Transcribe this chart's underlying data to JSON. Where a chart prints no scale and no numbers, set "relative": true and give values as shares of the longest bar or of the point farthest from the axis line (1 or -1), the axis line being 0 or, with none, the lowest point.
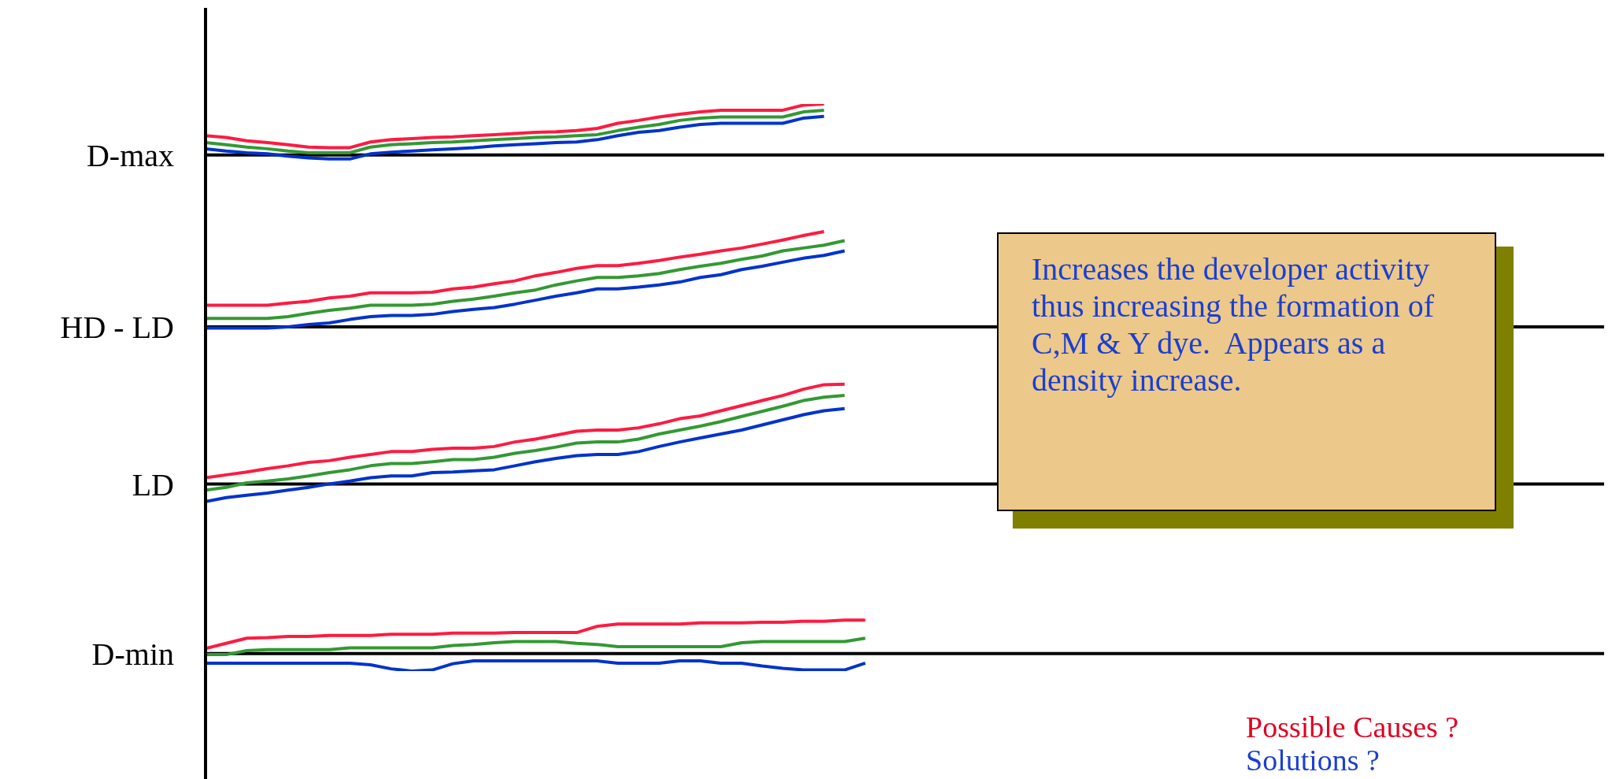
{
  "chart_data": {
    "type": "line",
    "relative": true,
    "categories": [
      null,
      null,
      null,
      null,
      null,
      null,
      null,
      null,
      null,
      null,
      null,
      null,
      null,
      null,
      null,
      null,
      null,
      null,
      null,
      null,
      null,
      null,
      null,
      null,
      null,
      null,
      null,
      null,
      null,
      null,
      null,
      null,
      null
    ],
    "series": [
      {
        "color": "#ff1a40",
        "values": [
          0.944,
          0.941,
          0.935,
          0.932,
          0.928,
          0.924,
          0.923,
          0.923,
          0.933,
          0.937,
          0.939,
          0.941,
          0.942,
          0.944,
          0.946,
          0.948,
          0.95,
          0.951,
          0.953,
          0.957,
          0.966,
          0.971,
          0.977,
          0.982,
          0.986,
          0.989,
          0.989,
          0.989,
          0.989,
          0.998,
          1,
          null,
          null
        ]
      },
      {
        "color": "#339933",
        "values": [
          0.932,
          0.928,
          0.924,
          0.921,
          0.917,
          0.914,
          0.914,
          0.914,
          0.924,
          0.928,
          0.93,
          0.932,
          0.933,
          0.935,
          0.937,
          0.939,
          0.941,
          0.942,
          0.944,
          0.946,
          0.953,
          0.959,
          0.964,
          0.971,
          0.975,
          0.977,
          0.977,
          0.977,
          0.977,
          0.986,
          0.989,
          null,
          null
        ]
      },
      {
        "color": "#0033cc",
        "values": [
          0.921,
          0.917,
          0.914,
          0.912,
          0.908,
          0.905,
          0.903,
          0.903,
          0.912,
          0.915,
          0.917,
          0.919,
          0.921,
          0.923,
          0.926,
          0.928,
          0.93,
          0.932,
          0.933,
          0.937,
          0.944,
          0.95,
          0.953,
          0.959,
          0.964,
          0.966,
          0.966,
          0.966,
          0.966,
          0.975,
          0.978,
          null,
          null
        ]
      },
      {
        "color": "#ff1a40",
        "values": [
          0.645,
          0.645,
          0.645,
          0.645,
          0.649,
          0.652,
          0.658,
          0.661,
          0.667,
          0.667,
          0.667,
          0.668,
          0.674,
          0.677,
          0.683,
          0.688,
          0.697,
          0.703,
          0.71,
          0.715,
          0.715,
          0.719,
          0.724,
          0.73,
          0.735,
          0.741,
          0.746,
          0.753,
          0.76,
          0.768,
          0.775,
          null,
          null
        ]
      },
      {
        "color": "#339933",
        "values": [
          0.622,
          0.622,
          0.622,
          0.622,
          0.625,
          0.631,
          0.636,
          0.64,
          0.645,
          0.645,
          0.645,
          0.647,
          0.652,
          0.656,
          0.661,
          0.667,
          0.672,
          0.681,
          0.688,
          0.694,
          0.694,
          0.697,
          0.701,
          0.708,
          0.714,
          0.719,
          0.726,
          0.732,
          0.741,
          0.746,
          0.751,
          0.759,
          null
        ]
      },
      {
        "color": "#0033cc",
        "values": [
          0.605,
          0.605,
          0.605,
          0.605,
          0.607,
          0.611,
          0.614,
          0.62,
          0.625,
          0.627,
          0.627,
          0.629,
          0.634,
          0.638,
          0.641,
          0.647,
          0.654,
          0.661,
          0.667,
          0.674,
          0.674,
          0.677,
          0.681,
          0.686,
          0.694,
          0.699,
          0.708,
          0.714,
          0.721,
          0.728,
          0.733,
          0.741,
          null
        ]
      },
      {
        "color": "#ff1a40",
        "values": [
          0.341,
          0.346,
          0.351,
          0.357,
          0.362,
          0.368,
          0.371,
          0.377,
          0.382,
          0.387,
          0.387,
          0.391,
          0.393,
          0.393,
          0.396,
          0.404,
          0.409,
          0.416,
          0.423,
          0.425,
          0.425,
          0.429,
          0.436,
          0.445,
          0.45,
          0.459,
          0.468,
          0.477,
          0.486,
          0.497,
          0.505,
          0.506,
          null
        ]
      },
      {
        "color": "#339933",
        "values": [
          0.319,
          0.324,
          0.332,
          0.335,
          0.339,
          0.344,
          0.35,
          0.355,
          0.362,
          0.366,
          0.366,
          0.369,
          0.373,
          0.373,
          0.377,
          0.384,
          0.389,
          0.395,
          0.402,
          0.404,
          0.404,
          0.409,
          0.418,
          0.425,
          0.432,
          0.44,
          0.449,
          0.458,
          0.467,
          0.477,
          0.483,
          0.486,
          null
        ]
      },
      {
        "color": "#0033cc",
        "values": [
          0.299,
          0.306,
          0.31,
          0.314,
          0.319,
          0.324,
          0.33,
          0.335,
          0.341,
          0.344,
          0.344,
          0.35,
          0.351,
          0.353,
          0.355,
          0.362,
          0.369,
          0.375,
          0.38,
          0.382,
          0.382,
          0.387,
          0.396,
          0.404,
          0.411,
          0.418,
          0.425,
          0.434,
          0.443,
          0.452,
          0.459,
          0.463,
          null
        ]
      },
      {
        "color": "#ff1a40",
        "values": [
          0.04,
          0.049,
          0.058,
          0.059,
          0.061,
          0.061,
          0.063,
          0.063,
          0.063,
          0.065,
          0.065,
          0.065,
          0.067,
          0.067,
          0.067,
          0.068,
          0.068,
          0.068,
          0.068,
          0.079,
          0.083,
          0.083,
          0.083,
          0.083,
          0.085,
          0.085,
          0.085,
          0.086,
          0.086,
          0.088,
          0.088,
          0.09,
          0.09
        ]
      },
      {
        "color": "#339933",
        "values": [
          0.029,
          0.029,
          0.036,
          0.038,
          0.038,
          0.038,
          0.038,
          0.041,
          0.041,
          0.041,
          0.041,
          0.041,
          0.045,
          0.047,
          0.05,
          0.052,
          0.052,
          0.052,
          0.049,
          0.047,
          0.043,
          0.043,
          0.043,
          0.043,
          0.043,
          0.043,
          0.05,
          0.052,
          0.052,
          0.052,
          0.052,
          0.052,
          0.058
        ]
      },
      {
        "color": "#0033cc",
        "values": [
          0.014,
          0.014,
          0.014,
          0.014,
          0.014,
          0.014,
          0.014,
          0.014,
          0.011,
          0.004,
          0,
          0.002,
          0.013,
          0.018,
          0.018,
          0.018,
          0.018,
          0.018,
          0.018,
          0.018,
          0.014,
          0.014,
          0.014,
          0.018,
          0.018,
          0.014,
          0.014,
          0.009,
          0.005,
          0.002,
          0.002,
          0.002,
          0.014
        ]
      }
    ],
    "ref_lines": [
      {
        "axis": "y",
        "value": 0.91,
        "label": "D-max",
        "color": "#000000"
      },
      {
        "axis": "y",
        "value": 0.607,
        "label": "HD - LD",
        "color": "#000000"
      },
      {
        "axis": "y",
        "value": 0.33,
        "label": "LD",
        "color": "#000000"
      },
      {
        "axis": "y",
        "value": 0.031,
        "label": "D-min",
        "color": "#000000"
      }
    ],
    "annotations": [
      "Increases the developer activity thus increasing the formation of C,M & Y dye.  Appears as a density increase.",
      "Possible Causes ?",
      "Solutions ?"
    ]
  }
}
